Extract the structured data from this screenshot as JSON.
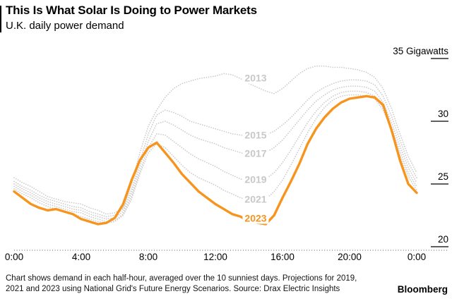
{
  "header": {
    "title": "This Is What Solar Is Doing to Power Markets",
    "subtitle": "U.K. daily power demand"
  },
  "footer": {
    "note": "Chart shows demand in each half-hour, averaged over the 10 sunniest days. Projections for 2019, 2021 and 2023 using National Grid's Future Energy Scenarios. Source: Drax Electric Insights",
    "brand": "Bloomberg"
  },
  "chart_data": {
    "type": "line",
    "title": "U.K. daily power demand",
    "unit": "Gigawatts",
    "xlim": [
      0,
      24
    ],
    "ylim": [
      20,
      35
    ],
    "grid": "off",
    "legend": "inline-labels",
    "colors": {
      "highlight": "#f7941e",
      "history": "#c8c8c8",
      "axis": "#2b2b2b"
    },
    "y_ticks": [
      {
        "value": 35,
        "label": "35 Gigawatts"
      },
      {
        "value": 30,
        "label": "30"
      },
      {
        "value": 25,
        "label": "25"
      },
      {
        "value": 20,
        "label": "20"
      }
    ],
    "x_ticks": [
      {
        "hour": 0,
        "label": "0:00"
      },
      {
        "hour": 4,
        "label": "4:00"
      },
      {
        "hour": 8,
        "label": "8:00"
      },
      {
        "hour": 12,
        "label": "12:00"
      },
      {
        "hour": 16,
        "label": "16:00"
      },
      {
        "hour": 20,
        "label": "20:00"
      },
      {
        "hour": 24,
        "label": "0:00"
      }
    ],
    "series_label_hour": 14.4,
    "x_hours": [
      0,
      0.5,
      1,
      1.5,
      2,
      2.5,
      3,
      3.5,
      4,
      4.5,
      5,
      5.5,
      6,
      6.5,
      7,
      7.5,
      8,
      8.5,
      9,
      9.5,
      10,
      10.5,
      11,
      11.5,
      12,
      12.5,
      13,
      13.5,
      14,
      14.5,
      15,
      15.5,
      16,
      16.5,
      17,
      17.5,
      18,
      18.5,
      19,
      19.5,
      20,
      20.5,
      21,
      21.5,
      22,
      22.5,
      23,
      23.5,
      24
    ],
    "series": [
      {
        "name": "2013",
        "style": "dotted",
        "color": "#c8c8c8",
        "label_gw": 33.4,
        "values": [
          25.5,
          25.1,
          24.8,
          24.4,
          24.0,
          23.8,
          23.6,
          23.5,
          23.4,
          23.1,
          22.9,
          22.6,
          22.7,
          23.1,
          25.0,
          27.5,
          29.6,
          30.9,
          31.9,
          32.6,
          33.0,
          33.2,
          33.4,
          33.5,
          33.6,
          33.8,
          33.7,
          33.4,
          33.0,
          32.7,
          32.4,
          32.2,
          32.6,
          33.2,
          33.8,
          34.2,
          34.4,
          34.4,
          34.3,
          34.3,
          34.2,
          34.1,
          33.9,
          33.5,
          32.6,
          31.0,
          29.0,
          27.2,
          25.9
        ]
      },
      {
        "name": "2015",
        "style": "dotted",
        "color": "#c8c8c8",
        "label_gw": 28.9,
        "values": [
          25.2,
          24.8,
          24.5,
          24.1,
          23.8,
          23.6,
          23.4,
          23.2,
          23.1,
          22.8,
          22.6,
          22.4,
          22.5,
          23.0,
          24.6,
          26.8,
          29.0,
          30.5,
          30.9,
          30.7,
          30.4,
          30.0,
          29.8,
          29.6,
          29.4,
          29.2,
          29.0,
          28.9,
          28.8,
          28.8,
          28.9,
          29.2,
          29.7,
          30.3,
          31.0,
          31.7,
          32.3,
          32.7,
          33.0,
          33.2,
          33.3,
          33.3,
          33.2,
          32.9,
          32.0,
          30.4,
          28.5,
          26.7,
          25.5
        ]
      },
      {
        "name": "2017",
        "style": "dotted",
        "color": "#c8c8c8",
        "label_gw": 27.4,
        "values": [
          25.0,
          24.6,
          24.3,
          23.9,
          23.6,
          23.4,
          23.2,
          23.0,
          22.9,
          22.6,
          22.4,
          22.2,
          22.3,
          22.8,
          24.3,
          26.4,
          28.4,
          29.8,
          30.0,
          29.7,
          29.3,
          28.9,
          28.6,
          28.4,
          28.2,
          27.9,
          27.7,
          27.5,
          27.3,
          27.3,
          27.5,
          27.9,
          28.5,
          29.3,
          30.1,
          30.9,
          31.6,
          32.1,
          32.5,
          32.7,
          32.8,
          32.8,
          32.7,
          32.4,
          31.5,
          29.9,
          28.0,
          26.3,
          25.1
        ]
      },
      {
        "name": "2019",
        "style": "dotted",
        "color": "#c8c8c8",
        "label_gw": 25.35,
        "values": [
          24.8,
          24.4,
          24.1,
          23.7,
          23.4,
          23.2,
          23.0,
          22.8,
          22.7,
          22.4,
          22.2,
          22.0,
          22.1,
          22.6,
          24.0,
          26.0,
          27.9,
          29.0,
          28.9,
          28.4,
          27.9,
          27.4,
          27.0,
          26.7,
          26.4,
          26.0,
          25.7,
          25.4,
          25.2,
          25.2,
          25.4,
          25.9,
          26.7,
          27.7,
          28.8,
          29.9,
          30.8,
          31.5,
          32.0,
          32.3,
          32.4,
          32.4,
          32.3,
          32.0,
          31.1,
          29.5,
          27.6,
          25.9,
          24.8
        ]
      },
      {
        "name": "2021",
        "style": "dotted",
        "color": "#c8c8c8",
        "label_gw": 23.75,
        "values": [
          24.6,
          24.2,
          23.9,
          23.5,
          23.2,
          23.0,
          22.8,
          22.6,
          22.4,
          22.2,
          22.0,
          21.9,
          22.0,
          22.5,
          23.8,
          25.8,
          27.5,
          28.2,
          27.9,
          27.2,
          26.5,
          25.9,
          25.5,
          25.2,
          24.9,
          24.5,
          24.2,
          23.9,
          23.7,
          23.6,
          23.8,
          24.4,
          25.3,
          26.5,
          27.8,
          29.1,
          30.2,
          31.1,
          31.7,
          32.0,
          32.1,
          32.1,
          32.0,
          31.8,
          30.9,
          29.3,
          27.3,
          25.6,
          24.5
        ]
      },
      {
        "name": "2023",
        "style": "solid",
        "color": "#f7941e",
        "label_gw": 22.25,
        "values": [
          24.4,
          23.9,
          23.4,
          23.1,
          22.9,
          23.0,
          22.8,
          22.6,
          22.2,
          22.0,
          21.8,
          21.9,
          22.3,
          23.4,
          25.3,
          26.9,
          27.9,
          28.3,
          27.5,
          26.7,
          25.8,
          25.1,
          24.4,
          23.9,
          23.4,
          23.0,
          22.6,
          22.4,
          22.0,
          21.9,
          21.8,
          22.5,
          23.9,
          25.2,
          26.6,
          28.2,
          29.4,
          30.3,
          31.0,
          31.5,
          31.8,
          31.9,
          32.0,
          31.9,
          31.3,
          29.3,
          26.9,
          25.0,
          24.3
        ]
      }
    ]
  }
}
